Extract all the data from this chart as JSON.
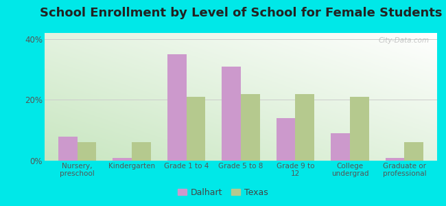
{
  "title": "School Enrollment by Level of School for Female Students",
  "categories": [
    "Nursery,\npreschool",
    "Kindergarten",
    "Grade 1 to 4",
    "Grade 5 to 8",
    "Grade 9 to\n12",
    "College\nundergrad",
    "Graduate or\nprofessional"
  ],
  "dalhart": [
    8,
    1,
    35,
    31,
    14,
    9,
    1
  ],
  "texas": [
    6,
    6,
    21,
    22,
    22,
    21,
    6
  ],
  "dalhart_color": "#cc99cc",
  "texas_color": "#b5c98e",
  "background_color": "#00e8e8",
  "ylim": [
    0,
    42
  ],
  "yticks": [
    0,
    20,
    40
  ],
  "ytick_labels": [
    "0%",
    "20%",
    "40%"
  ],
  "bar_width": 0.35,
  "legend_labels": [
    "Dalhart",
    "Texas"
  ],
  "title_fontsize": 13,
  "watermark": "City-Data.com"
}
